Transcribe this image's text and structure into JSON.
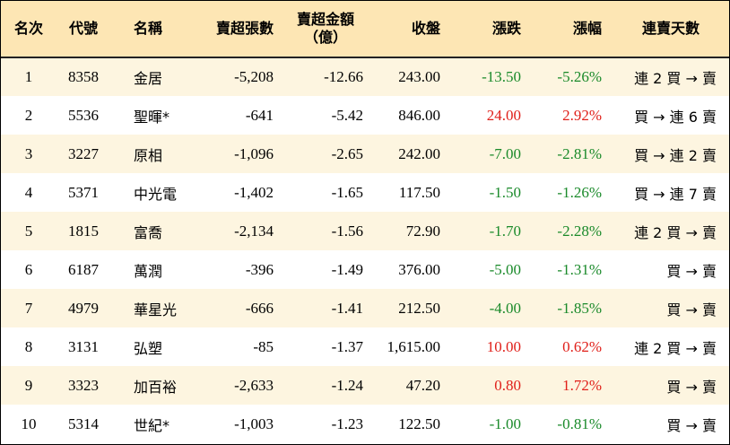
{
  "headers": {
    "rank": "名次",
    "code": "代號",
    "name": "名稱",
    "net_sell_lots": "賣超張數",
    "net_sell_amount_line1": "賣超金額",
    "net_sell_amount_line2": "（億）",
    "close": "收盤",
    "change": "漲跌",
    "change_pct": "漲幅",
    "streak": "連賣天數"
  },
  "colors": {
    "header_bg": "#fde6b4",
    "row_odd_bg": "#fdf5e0",
    "row_even_bg": "#ffffff",
    "down": "#1a8a2a",
    "up": "#e0201a"
  },
  "rows": [
    {
      "rank": "1",
      "code": "8358",
      "name": "金居",
      "lots": "-5,208",
      "amount": "-12.66",
      "close": "243.00",
      "change": "-13.50",
      "pct": "-5.26%",
      "dir": "down",
      "streak": "連 2 買 → 賣"
    },
    {
      "rank": "2",
      "code": "5536",
      "name": "聖暉*",
      "lots": "-641",
      "amount": "-5.42",
      "close": "846.00",
      "change": "24.00",
      "pct": "2.92%",
      "dir": "up",
      "streak": "買 → 連 6 賣"
    },
    {
      "rank": "3",
      "code": "3227",
      "name": "原相",
      "lots": "-1,096",
      "amount": "-2.65",
      "close": "242.00",
      "change": "-7.00",
      "pct": "-2.81%",
      "dir": "down",
      "streak": "買 → 連 2 賣"
    },
    {
      "rank": "4",
      "code": "5371",
      "name": "中光電",
      "lots": "-1,402",
      "amount": "-1.65",
      "close": "117.50",
      "change": "-1.50",
      "pct": "-1.26%",
      "dir": "down",
      "streak": "買 → 連 7 賣"
    },
    {
      "rank": "5",
      "code": "1815",
      "name": "富喬",
      "lots": "-2,134",
      "amount": "-1.56",
      "close": "72.90",
      "change": "-1.70",
      "pct": "-2.28%",
      "dir": "down",
      "streak": "連 2 買 → 賣"
    },
    {
      "rank": "6",
      "code": "6187",
      "name": "萬潤",
      "lots": "-396",
      "amount": "-1.49",
      "close": "376.00",
      "change": "-5.00",
      "pct": "-1.31%",
      "dir": "down",
      "streak": "買 → 賣"
    },
    {
      "rank": "7",
      "code": "4979",
      "name": "華星光",
      "lots": "-666",
      "amount": "-1.41",
      "close": "212.50",
      "change": "-4.00",
      "pct": "-1.85%",
      "dir": "down",
      "streak": "買 → 賣"
    },
    {
      "rank": "8",
      "code": "3131",
      "name": "弘塑",
      "lots": "-85",
      "amount": "-1.37",
      "close": "1,615.00",
      "change": "10.00",
      "pct": "0.62%",
      "dir": "up",
      "streak": "連 2 買 → 賣"
    },
    {
      "rank": "9",
      "code": "3323",
      "name": "加百裕",
      "lots": "-2,633",
      "amount": "-1.24",
      "close": "47.20",
      "change": "0.80",
      "pct": "1.72%",
      "dir": "up",
      "streak": "買 → 賣"
    },
    {
      "rank": "10",
      "code": "5314",
      "name": "世紀*",
      "lots": "-1,003",
      "amount": "-1.23",
      "close": "122.50",
      "change": "-1.00",
      "pct": "-0.81%",
      "dir": "down",
      "streak": "買 → 賣"
    }
  ]
}
